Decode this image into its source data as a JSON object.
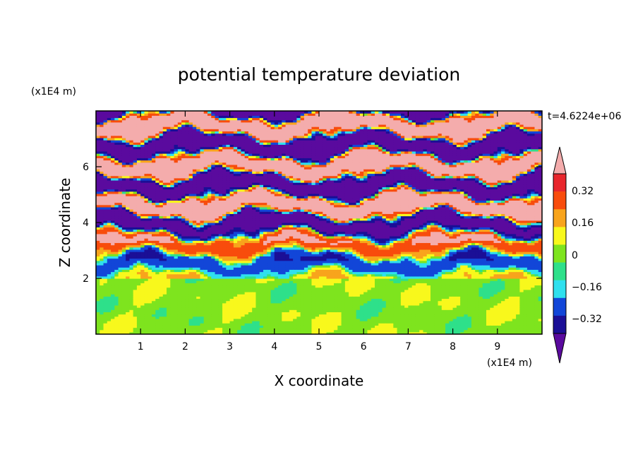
{
  "chart_data": {
    "type": "heatmap",
    "title": "potential temperature deviation",
    "xlabel": "X coordinate",
    "ylabel": "Z coordinate",
    "x_unit": "(x1E4 m)",
    "y_unit": "(x1E4 m)",
    "time_label": "t=4.6224e+06",
    "xlim": [
      0,
      10
    ],
    "ylim": [
      0,
      8
    ],
    "x_ticks": [
      "1",
      "2",
      "3",
      "4",
      "5",
      "6",
      "7",
      "8",
      "9"
    ],
    "y_ticks": [
      "2",
      "4",
      "6"
    ],
    "colorbar": {
      "tick_labels": [
        "0.32",
        "0.16",
        "0",
        "−0.16",
        "−0.32"
      ],
      "levels": [
        -0.4,
        -0.32,
        -0.24,
        -0.16,
        -0.08,
        0,
        0.08,
        0.16,
        0.24,
        0.32,
        0.4
      ],
      "colors": [
        "#5a0a9e",
        "#1b0f96",
        "#1246d8",
        "#2fe0ee",
        "#2ee08a",
        "#7ee41e",
        "#f8f81c",
        "#f8a41c",
        "#f84c0c",
        "#e8262c",
        "#f4acac"
      ],
      "extend": "both"
    },
    "regions": {
      "lower_layer_top_z": 2.0,
      "lower_layer_dominant_values": [
        0.0,
        0.08
      ],
      "upper_layer_pattern": "alternating horizontal bands of high (about +0.4) and low (about -0.4) values"
    }
  }
}
